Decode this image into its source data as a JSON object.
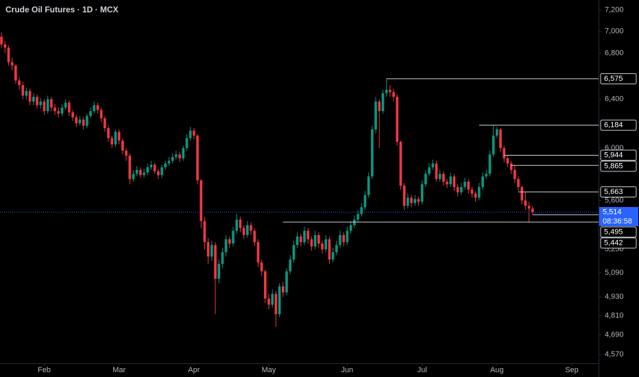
{
  "chart_data": {
    "type": "candlestick",
    "title": "Crude Oil Futures · 1D · MCX",
    "log_scale": true,
    "grid": false,
    "up_color": "#089981",
    "down_color": "#f23645",
    "xlim": [
      -0.4,
      167.5
    ],
    "ylim": [
      4517,
      7295
    ],
    "xticks": [
      {
        "value": 12,
        "label": "Feb"
      },
      {
        "value": 33,
        "label": "Mar"
      },
      {
        "value": 54,
        "label": "Apr"
      },
      {
        "value": 75,
        "label": "May"
      },
      {
        "value": 97,
        "label": "Jun"
      },
      {
        "value": 118,
        "label": "Jul"
      },
      {
        "value": 139,
        "label": "Aug"
      },
      {
        "value": 160,
        "label": "Sep"
      }
    ],
    "yticks": [
      {
        "value": 7200,
        "label": "7,200"
      },
      {
        "value": 7000,
        "label": "7,000"
      },
      {
        "value": 6800,
        "label": "6,800"
      },
      {
        "value": 6400,
        "label": "6,400"
      },
      {
        "value": 6000,
        "label": "6,000"
      },
      {
        "value": 5600,
        "label": "5,600"
      },
      {
        "value": 5250,
        "label": "5,250"
      },
      {
        "value": 5090,
        "label": "5,090"
      },
      {
        "value": 4930,
        "label": "4,930"
      },
      {
        "value": 4810,
        "label": "4,810"
      },
      {
        "value": 4690,
        "label": "4,690"
      },
      {
        "value": 4570,
        "label": "4,570"
      }
    ],
    "open": [
      6950,
      6880,
      6850,
      6720,
      6690,
      6560,
      6520,
      6430,
      6470,
      6380,
      6420,
      6350,
      6380,
      6300,
      6400,
      6330,
      6300,
      6280,
      6330,
      6370,
      6290,
      6250,
      6200,
      6230,
      6180,
      6260,
      6300,
      6350,
      6310,
      6240,
      6160,
      6080,
      6030,
      6130,
      6060,
      5980,
      5940,
      5760,
      5800,
      5830,
      5790,
      5810,
      5850,
      5870,
      5820,
      5790,
      5850,
      5880,
      5900,
      5930,
      5950,
      5920,
      6000,
      6080,
      6140,
      6100,
      5750,
      5450,
      5300,
      5200,
      5280,
      5050,
      5150,
      5230,
      5320,
      5290,
      5380,
      5460,
      5400,
      5350,
      5420,
      5380,
      5300,
      5160,
      5100,
      4920,
      4880,
      4950,
      4820,
      5000,
      4960,
      5100,
      5180,
      5280,
      5340,
      5300,
      5380,
      5320,
      5270,
      5350,
      5290,
      5250,
      5320,
      5180,
      5230,
      5280,
      5350,
      5300,
      5380,
      5420,
      5460,
      5500,
      5550,
      5640,
      5780,
      6150,
      6380,
      6300,
      6450,
      6480,
      6460,
      6420,
      6050,
      5710,
      5560,
      5620,
      5580,
      5610,
      5590,
      5720,
      5800,
      5850,
      5880,
      5760,
      5800,
      5740,
      5720,
      5780,
      5700,
      5660,
      5700,
      5740,
      5680,
      5650,
      5620,
      5700,
      5780,
      5800,
      5950,
      6100,
      6150,
      6000,
      5920,
      5880,
      5830,
      5760,
      5700,
      5600,
      5560,
      5540
    ],
    "high": [
      6990,
      6910,
      6870,
      6760,
      6700,
      6590,
      6550,
      6500,
      6490,
      6450,
      6440,
      6410,
      6400,
      6430,
      6420,
      6360,
      6330,
      6360,
      6400,
      6390,
      6310,
      6270,
      6260,
      6250,
      6280,
      6330,
      6380,
      6370,
      6330,
      6260,
      6180,
      6100,
      6150,
      6150,
      6080,
      6000,
      5960,
      5830,
      5860,
      5850,
      5840,
      5880,
      5900,
      5890,
      5840,
      5870,
      5900,
      5930,
      5960,
      5980,
      5970,
      6020,
      6110,
      6170,
      6160,
      6110,
      5760,
      5480,
      5330,
      5310,
      5300,
      5180,
      5260,
      5350,
      5340,
      5410,
      5500,
      5480,
      5420,
      5450,
      5440,
      5400,
      5320,
      5180,
      5110,
      4950,
      4980,
      4970,
      5020,
      5030,
      5120,
      5210,
      5310,
      5370,
      5360,
      5410,
      5400,
      5340,
      5380,
      5370,
      5310,
      5350,
      5340,
      5260,
      5310,
      5380,
      5370,
      5410,
      5450,
      5490,
      5530,
      5580,
      5670,
      5810,
      6180,
      6420,
      6400,
      6480,
      6575,
      6520,
      6490,
      6440,
      6060,
      5730,
      5650,
      5640,
      5640,
      5630,
      5750,
      5830,
      5880,
      5910,
      5900,
      5830,
      5820,
      5760,
      5810,
      5800,
      5720,
      5730,
      5770,
      5760,
      5700,
      5670,
      5730,
      5810,
      5830,
      5980,
      6184,
      6170,
      6160,
      6020,
      5944,
      5900,
      5865,
      5780,
      5710,
      5663,
      5590,
      5560
    ],
    "low": [
      6850,
      6800,
      6690,
      6650,
      6530,
      6480,
      6400,
      6400,
      6350,
      6350,
      6320,
      6320,
      6270,
      6280,
      6300,
      6270,
      6250,
      6260,
      6310,
      6260,
      6220,
      6170,
      6180,
      6150,
      6160,
      6240,
      6280,
      6280,
      6210,
      6130,
      6050,
      6000,
      6010,
      6030,
      5950,
      5900,
      5720,
      5740,
      5780,
      5770,
      5770,
      5790,
      5830,
      5800,
      5760,
      5770,
      5830,
      5860,
      5880,
      5910,
      5890,
      5900,
      5980,
      6060,
      6070,
      5720,
      5400,
      5250,
      5150,
      5170,
      4820,
      5020,
      5120,
      5200,
      5260,
      5270,
      5360,
      5370,
      5320,
      5330,
      5350,
      5270,
      5130,
      5070,
      4890,
      4850,
      4860,
      4740,
      4800,
      4930,
      4940,
      5080,
      5160,
      5260,
      5270,
      5280,
      5290,
      5240,
      5250,
      5260,
      5220,
      5230,
      5150,
      5160,
      5210,
      5260,
      5270,
      5280,
      5360,
      5400,
      5440,
      5480,
      5530,
      5620,
      5760,
      6120,
      6000,
      6280,
      6420,
      6420,
      6380,
      6020,
      5680,
      5530,
      5540,
      5550,
      5560,
      5560,
      5570,
      5700,
      5780,
      5830,
      5740,
      5740,
      5710,
      5690,
      5700,
      5670,
      5630,
      5640,
      5680,
      5650,
      5620,
      5590,
      5600,
      5680,
      5760,
      5780,
      5930,
      6080,
      5970,
      5890,
      5850,
      5800,
      5730,
      5670,
      5570,
      5530,
      5442,
      5495
    ],
    "close": [
      6880,
      6850,
      6720,
      6690,
      6560,
      6520,
      6430,
      6470,
      6380,
      6420,
      6350,
      6380,
      6300,
      6400,
      6330,
      6300,
      6280,
      6330,
      6370,
      6290,
      6250,
      6200,
      6230,
      6180,
      6260,
      6300,
      6350,
      6310,
      6240,
      6160,
      6080,
      6030,
      6130,
      6060,
      5980,
      5940,
      5760,
      5800,
      5830,
      5790,
      5810,
      5850,
      5870,
      5820,
      5790,
      5850,
      5880,
      5900,
      5930,
      5950,
      5920,
      6000,
      6080,
      6140,
      6100,
      5750,
      5450,
      5300,
      5200,
      5280,
      5050,
      5150,
      5230,
      5320,
      5290,
      5380,
      5460,
      5400,
      5350,
      5420,
      5380,
      5300,
      5160,
      5100,
      4920,
      4880,
      4950,
      4820,
      5000,
      4960,
      5100,
      5180,
      5280,
      5340,
      5300,
      5380,
      5320,
      5270,
      5350,
      5290,
      5250,
      5320,
      5180,
      5230,
      5280,
      5350,
      5300,
      5380,
      5420,
      5460,
      5500,
      5550,
      5640,
      5780,
      6150,
      6380,
      6300,
      6450,
      6480,
      6460,
      6420,
      6050,
      5710,
      5560,
      5620,
      5580,
      5610,
      5590,
      5720,
      5800,
      5850,
      5880,
      5760,
      5800,
      5740,
      5720,
      5780,
      5700,
      5660,
      5700,
      5740,
      5680,
      5650,
      5620,
      5700,
      5780,
      5800,
      5950,
      6100,
      6150,
      6000,
      5920,
      5880,
      5830,
      5760,
      5700,
      5600,
      5560,
      5540,
      5514
    ],
    "levels": [
      {
        "value": 6575,
        "label": "6,575",
        "x": 108
      },
      {
        "value": 6184,
        "label": "6,184",
        "x": 134
      },
      {
        "value": 5944,
        "label": "5,944",
        "x": 141
      },
      {
        "value": 5865,
        "label": "5,865",
        "x": 143
      },
      {
        "value": 5663,
        "label": "5,663",
        "x": 145
      },
      {
        "value": 5495,
        "label": "5,495",
        "x": 149
      },
      {
        "value": 5442,
        "label": "5,442",
        "x": 79
      }
    ],
    "last_price": {
      "value": 5514,
      "label": "5,514",
      "countdown": "08:36:58",
      "color": "#2962ff"
    }
  }
}
